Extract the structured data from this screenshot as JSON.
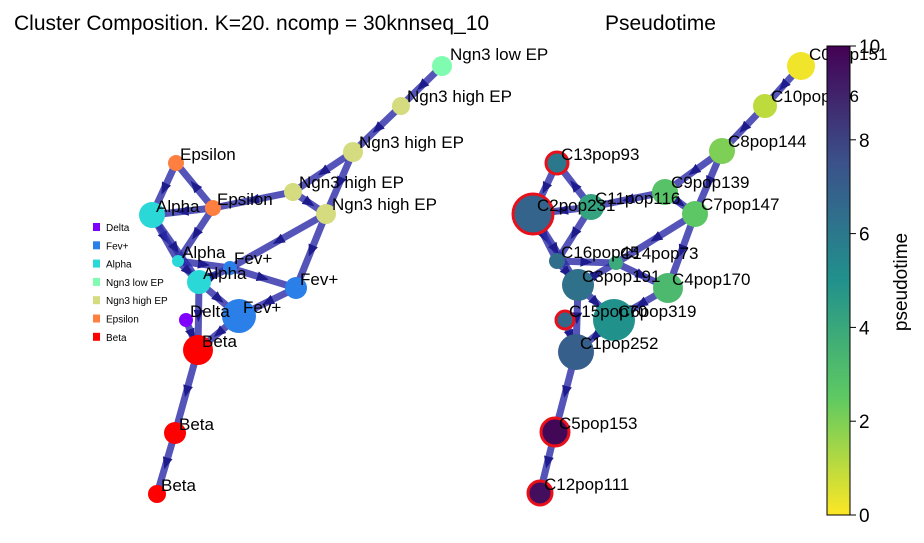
{
  "chart_data": [
    {
      "type": "scatter",
      "title": "Cluster Composition. K=20. ncomp = 30knnseq_10",
      "legend": {
        "placement": "left",
        "entries": [
          {
            "name": "Delta",
            "color": "#7f00ff"
          },
          {
            "name": "Fev+",
            "color": "#2a7fe8"
          },
          {
            "name": "Alpha",
            "color": "#2ad8d8"
          },
          {
            "name": "Ngn3 low EP",
            "color": "#7ffcb0"
          },
          {
            "name": "Ngn3 high EP",
            "color": "#d4dc7f"
          },
          {
            "name": "Epsilon",
            "color": "#ff7f40"
          },
          {
            "name": "Beta",
            "color": "#ff0000"
          }
        ]
      },
      "nodes": [
        {
          "id": "C0",
          "label": "Ngn3 low EP",
          "color": "#7ffcb0"
        },
        {
          "id": "C10",
          "label": "Ngn3 high EP",
          "color": "#d4dc7f"
        },
        {
          "id": "C8",
          "label": "Ngn3 high EP",
          "color": "#d4dc7f"
        },
        {
          "id": "C9",
          "label": "Ngn3 high EP",
          "color": "#d4dc7f"
        },
        {
          "id": "C7",
          "label": "Ngn3 high EP",
          "color": "#d4dc7f"
        },
        {
          "id": "C13",
          "label": "Epsilon",
          "color": "#ff7f40"
        },
        {
          "id": "C11",
          "label": "Epsilon",
          "color": "#ff7f40"
        },
        {
          "id": "C2",
          "label": "Alpha",
          "color": "#2ad8d8"
        },
        {
          "id": "C16",
          "label": "Alpha",
          "color": "#2ad8d8"
        },
        {
          "id": "C14",
          "label": "Fev+",
          "color": "#2a7fe8"
        },
        {
          "id": "C3",
          "label": "Alpha",
          "color": "#2ad8d8"
        },
        {
          "id": "C4",
          "label": "Fev+",
          "color": "#2a7fe8"
        },
        {
          "id": "C6",
          "label": "Fev+",
          "color": "#2a7fe8"
        },
        {
          "id": "C15",
          "label": "Delta",
          "color": "#7f00ff"
        },
        {
          "id": "C1",
          "label": "Beta",
          "color": "#ff0000"
        },
        {
          "id": "C5",
          "label": "Beta",
          "color": "#ff0000"
        },
        {
          "id": "C12",
          "label": "Beta",
          "color": "#ff0000"
        }
      ]
    },
    {
      "type": "scatter",
      "title": "Pseudotime",
      "colorbar": {
        "label": "pseudotime",
        "range": [
          0,
          10
        ],
        "ticks": [
          0,
          2,
          4,
          6,
          8,
          10
        ],
        "colormap": "viridis_r"
      },
      "nodes": [
        {
          "id": "C0",
          "label": "C0pop151",
          "pseudotime": 0.2
        },
        {
          "id": "C10",
          "label": "C10pop126",
          "pseudotime": 1.0
        },
        {
          "id": "C8",
          "label": "C8pop144",
          "pseudotime": 2.0
        },
        {
          "id": "C9",
          "label": "C9pop139",
          "pseudotime": 2.8
        },
        {
          "id": "C7",
          "label": "C7pop147",
          "pseudotime": 2.6
        },
        {
          "id": "C13",
          "label": "C13pop93",
          "pseudotime": 6.0
        },
        {
          "id": "C11",
          "label": "C11pop116",
          "pseudotime": 4.2
        },
        {
          "id": "C2",
          "label": "C2pop231",
          "pseudotime": 6.8
        },
        {
          "id": "C16",
          "label": "C16pop45",
          "pseudotime": 6.4
        },
        {
          "id": "C14",
          "label": "C14pop73",
          "pseudotime": 3.9
        },
        {
          "id": "C3",
          "label": "C3pop191",
          "pseudotime": 6.3
        },
        {
          "id": "C4",
          "label": "C4pop170",
          "pseudotime": 3.2
        },
        {
          "id": "C6",
          "label": "C6pop319",
          "pseudotime": 5.0
        },
        {
          "id": "C15",
          "label": "C15pop70",
          "pseudotime": 6.6
        },
        {
          "id": "C1",
          "label": "C1pop252",
          "pseudotime": 7.0
        },
        {
          "id": "C5",
          "label": "C5pop153",
          "pseudotime": 9.8
        },
        {
          "id": "C12",
          "label": "C12pop111",
          "pseudotime": 9.6
        }
      ],
      "edges": [
        [
          "C0",
          "C10"
        ],
        [
          "C10",
          "C8"
        ],
        [
          "C8",
          "C9"
        ],
        [
          "C8",
          "C7"
        ],
        [
          "C9",
          "C11"
        ],
        [
          "C9",
          "C7"
        ],
        [
          "C7",
          "C14"
        ],
        [
          "C7",
          "C4"
        ],
        [
          "C11",
          "C13"
        ],
        [
          "C11",
          "C2"
        ],
        [
          "C11",
          "C16"
        ],
        [
          "C13",
          "C2"
        ],
        [
          "C2",
          "C16"
        ],
        [
          "C2",
          "C3"
        ],
        [
          "C16",
          "C3"
        ],
        [
          "C16",
          "C14"
        ],
        [
          "C3",
          "C14"
        ],
        [
          "C3",
          "C6"
        ],
        [
          "C3",
          "C1"
        ],
        [
          "C14",
          "C4"
        ],
        [
          "C4",
          "C6"
        ],
        [
          "C15",
          "C1"
        ],
        [
          "C6",
          "C1"
        ],
        [
          "C1",
          "C5"
        ],
        [
          "C5",
          "C12"
        ]
      ]
    }
  ]
}
